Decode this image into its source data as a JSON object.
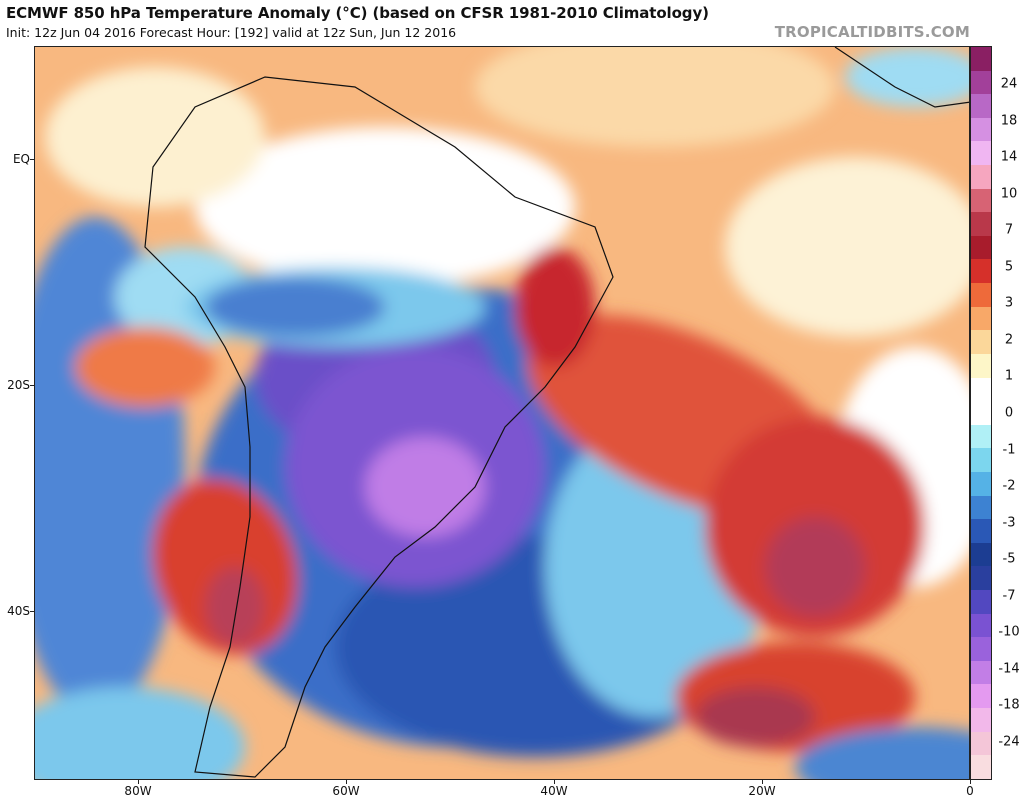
{
  "header": {
    "title": "ECMWF 850 hPa Temperature Anomaly (°C) (based on CFSR 1981-2010 Climatology)",
    "subtitle": "Init: 12z Jun 04 2016   Forecast Hour: [192]   valid at 12z Sun, Jun 12 2016",
    "credit": "TROPICALTIDBITS.COM"
  },
  "map": {
    "lat_labels": [
      "EQ",
      "20S",
      "40S"
    ],
    "lon_labels": [
      "80W",
      "60W",
      "40W",
      "20W",
      "0"
    ],
    "lat_values": [
      0,
      -20,
      -40
    ],
    "lon_values": [
      -80,
      -60,
      -40,
      -20,
      0
    ],
    "extent": {
      "lon_min": -90,
      "lon_max": 0,
      "lat_min": -55,
      "lat_max": 10
    }
  },
  "colorbar": {
    "labels": [
      "24",
      "18",
      "14",
      "10",
      "7",
      "5",
      "3",
      "2",
      "1",
      "0",
      "-1",
      "-2",
      "-3",
      "-5",
      "-7",
      "-10",
      "-14",
      "-18",
      "-24"
    ],
    "colors": [
      "#8a1f63",
      "#a2409a",
      "#b868c6",
      "#d590e2",
      "#f0b6f2",
      "#f6a6bf",
      "#d76374",
      "#b9384a",
      "#a81c2c",
      "#d6302a",
      "#ee6a3a",
      "#f8a868",
      "#fbd79a",
      "#fdf6c8",
      "#ffffff",
      "#ffffff",
      "#b0f0f6",
      "#7cd6ee",
      "#55b2e6",
      "#3d82d2",
      "#2a58b6",
      "#1c3d92",
      "#2a3f9e",
      "#5248c0",
      "#7a52d2",
      "#9a62dc",
      "#c27ee6",
      "#e49af0",
      "#f2b8ea",
      "#f4c6d8",
      "#f9dde0"
    ]
  }
}
